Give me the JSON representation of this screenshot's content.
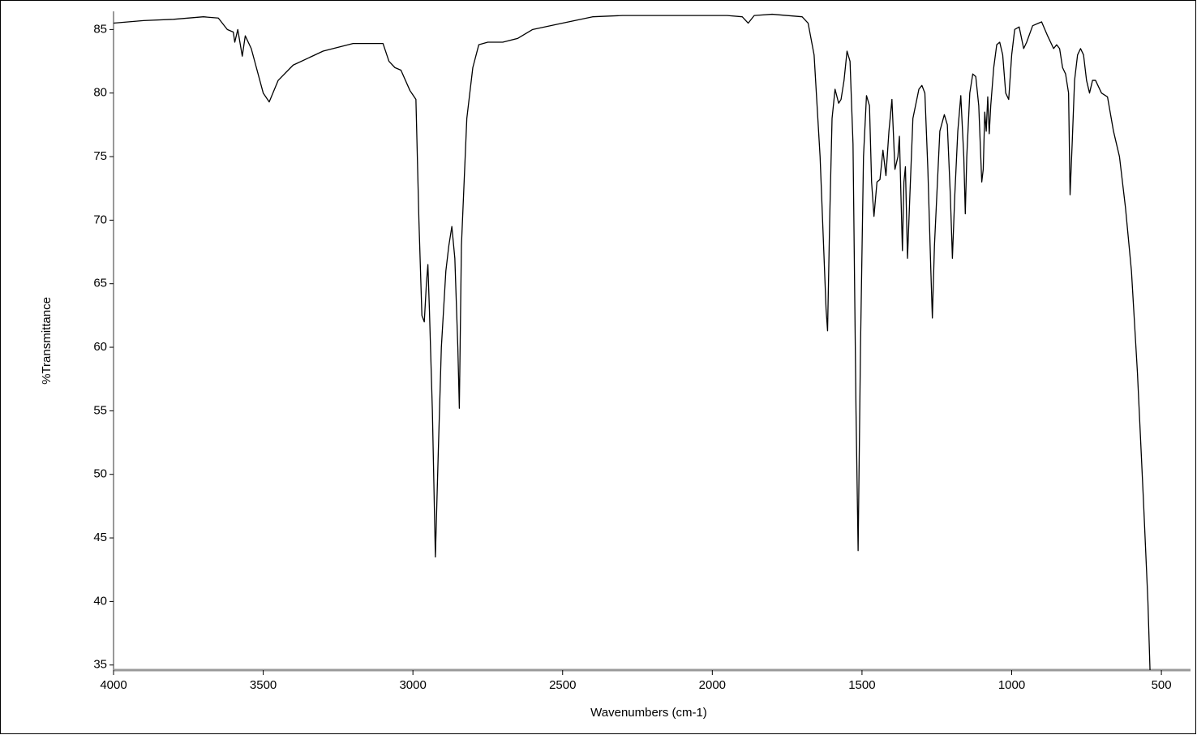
{
  "chart_data": {
    "type": "line",
    "xlabel": "Wavenumbers (cm-1)",
    "ylabel": "%Transmittance",
    "x": [
      4000,
      3900,
      3800,
      3700,
      3650,
      3620,
      3600,
      3595,
      3585,
      3570,
      3560,
      3540,
      3500,
      3480,
      3450,
      3400,
      3300,
      3200,
      3100,
      3080,
      3060,
      3040,
      3010,
      2990,
      2980,
      2970,
      2962,
      2955,
      2950,
      2945,
      2935,
      2925,
      2915,
      2905,
      2890,
      2880,
      2870,
      2860,
      2850,
      2845,
      2838,
      2820,
      2800,
      2780,
      2750,
      2700,
      2650,
      2600,
      2500,
      2400,
      2300,
      2200,
      2100,
      2000,
      1950,
      1900,
      1880,
      1860,
      1800,
      1700,
      1680,
      1660,
      1640,
      1620,
      1615,
      1608,
      1600,
      1590,
      1578,
      1570,
      1560,
      1550,
      1540,
      1530,
      1520,
      1513,
      1505,
      1495,
      1485,
      1475,
      1468,
      1460,
      1450,
      1440,
      1430,
      1420,
      1410,
      1400,
      1390,
      1380,
      1375,
      1370,
      1365,
      1360,
      1355,
      1348,
      1340,
      1330,
      1310,
      1300,
      1290,
      1280,
      1270,
      1265,
      1258,
      1250,
      1240,
      1225,
      1215,
      1205,
      1198,
      1190,
      1180,
      1170,
      1160,
      1155,
      1150,
      1140,
      1130,
      1120,
      1110,
      1100,
      1095,
      1090,
      1085,
      1080,
      1075,
      1070,
      1060,
      1050,
      1040,
      1030,
      1020,
      1010,
      1000,
      990,
      975,
      960,
      950,
      930,
      910,
      900,
      880,
      860,
      850,
      840,
      830,
      820,
      810,
      805,
      798,
      790,
      780,
      770,
      760,
      750,
      740,
      730,
      720,
      700,
      680,
      660,
      640,
      620,
      600,
      580,
      560,
      545,
      538
    ],
    "values": [
      85.5,
      85.7,
      85.8,
      86.0,
      85.9,
      85.0,
      84.8,
      84.0,
      85.0,
      82.9,
      84.5,
      83.5,
      80.0,
      79.3,
      81.0,
      82.2,
      83.3,
      83.9,
      83.9,
      82.5,
      82.0,
      81.8,
      80.2,
      79.5,
      70,
      62.5,
      62.0,
      65,
      66.5,
      63,
      55,
      43.5,
      52,
      60,
      66,
      68,
      69.5,
      67,
      60,
      55.2,
      68,
      78,
      82,
      83.8,
      84,
      84,
      84.3,
      85,
      85.5,
      86,
      86.1,
      86.1,
      86.1,
      86.1,
      86.1,
      86,
      85.5,
      86.1,
      86.2,
      86,
      85.5,
      83,
      75,
      63,
      61.3,
      70,
      78,
      80.3,
      79.2,
      79.5,
      81,
      83.3,
      82.5,
      76,
      55,
      44,
      60,
      75,
      79.8,
      79,
      73,
      70.3,
      73,
      73.2,
      75.5,
      73.5,
      77,
      79.5,
      74,
      75,
      76.6,
      72,
      67.6,
      73,
      74.2,
      67,
      72,
      78,
      80.3,
      80.6,
      80,
      74,
      66,
      62.3,
      68,
      72,
      77,
      78.3,
      77.5,
      72,
      67,
      72,
      77,
      79.8,
      75,
      70.5,
      75,
      80,
      81.5,
      81.3,
      79,
      73,
      74,
      78.5,
      77,
      79.7,
      76.8,
      79,
      82,
      83.8,
      84,
      83,
      80,
      79.5,
      83,
      85,
      85.2,
      83.5,
      84,
      85.3,
      85.5,
      85.6,
      84.5,
      83.5,
      83.8,
      83.5,
      82,
      81.5,
      80,
      72,
      76,
      81,
      83,
      83.5,
      83,
      81,
      80,
      81,
      81,
      80,
      79.7,
      77,
      75,
      71,
      66,
      58,
      48,
      40,
      34.6
    ],
    "color": "#000000",
    "xlim": [
      4000,
      400
    ],
    "xticks": [
      4000,
      3500,
      3000,
      2500,
      2000,
      1500,
      1000,
      500
    ],
    "ylim": [
      34.6,
      86.3
    ],
    "yticks": [
      35,
      40,
      45,
      50,
      55,
      60,
      65,
      70,
      75,
      80,
      85
    ]
  }
}
